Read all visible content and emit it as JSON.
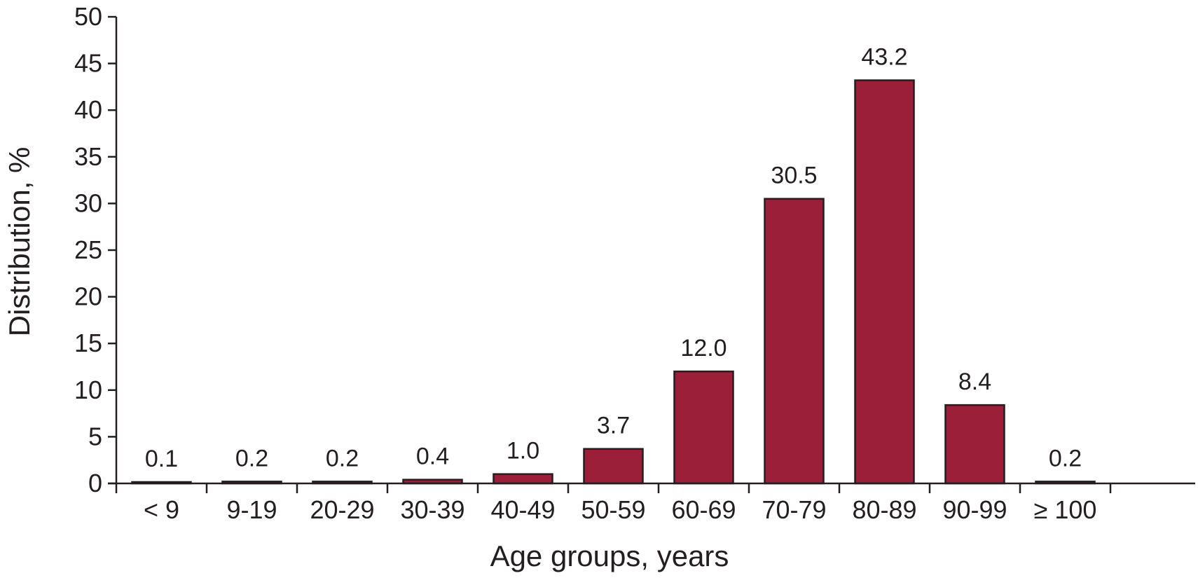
{
  "chart_data": {
    "type": "bar",
    "categories": [
      "< 9",
      "9-19",
      "20-29",
      "30-39",
      "40-49",
      "50-59",
      "60-69",
      "70-79",
      "80-89",
      "90-99",
      "≥ 100"
    ],
    "values": [
      0.1,
      0.2,
      0.2,
      0.4,
      1.0,
      3.7,
      12.0,
      30.5,
      43.2,
      8.4,
      0.2
    ],
    "data_labels": [
      "0.1",
      "0.2",
      "0.2",
      "0.4",
      "1.0",
      "3.7",
      "12.0",
      "30.5",
      "43.2",
      "8.4",
      "0.2"
    ],
    "yticks": [
      0,
      5,
      10,
      15,
      20,
      25,
      30,
      35,
      40,
      45,
      50
    ],
    "ylim": [
      0,
      50
    ],
    "xlabel": "Age groups, years",
    "ylabel": "Distribution, %",
    "title": "",
    "grid": false,
    "legend": "none",
    "bar_color": "#9b1f39",
    "bar_edge_color": "#231f20",
    "axis_color": "#231f20"
  }
}
